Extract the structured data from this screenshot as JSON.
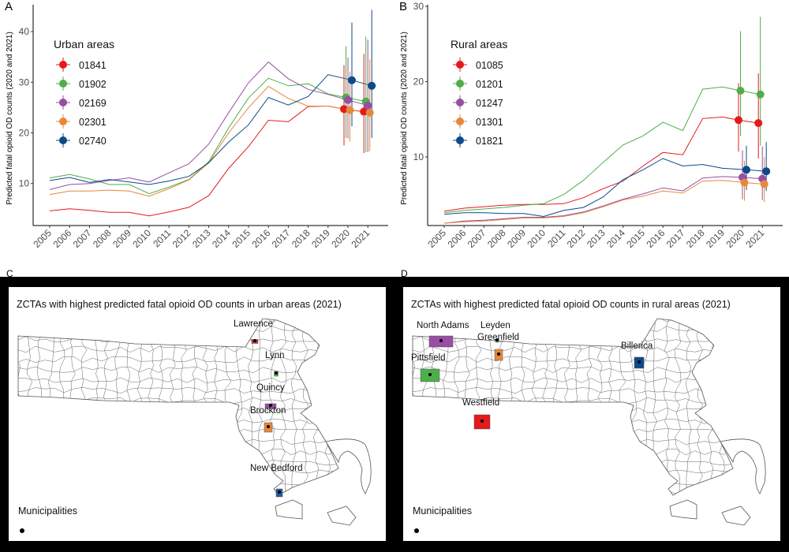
{
  "panels": {
    "A": "A",
    "B": "B",
    "C": "C",
    "D": "D"
  },
  "chart_data": [
    {
      "type": "line",
      "panel": "A",
      "title": "",
      "xlabel": "",
      "ylabel": "Predicted fatal opioid OD counts (2020 and 2021)",
      "ylim": [
        1.7,
        45
      ],
      "yticks": [
        10,
        20,
        30,
        40
      ],
      "x": [
        2005,
        2006,
        2007,
        2008,
        2009,
        2010,
        2011,
        2012,
        2013,
        2014,
        2015,
        2016,
        2017,
        2018,
        2019,
        2020,
        2021
      ],
      "legend_title": "Urban areas",
      "legend_position": "top-left",
      "grid": false,
      "series": [
        {
          "name": "01841",
          "color": "#e41a1c",
          "values": [
            4.6,
            5.0,
            4.7,
            4.3,
            4.3,
            3.6,
            4.4,
            5.3,
            7.6,
            13.0,
            17.3,
            22.5,
            22.2,
            25.2,
            25.3,
            24.7,
            24.2
          ],
          "ci": {
            "2020": [
              17.5,
              33.4
            ],
            "2021": [
              16.0,
              35.6
            ]
          }
        },
        {
          "name": "01902",
          "color": "#4daf4a",
          "values": [
            11.1,
            11.8,
            10.9,
            9.8,
            9.8,
            8.0,
            9.3,
            10.8,
            14.3,
            21.0,
            26.9,
            30.8,
            29.3,
            29.7,
            27.7,
            27.0,
            26.2
          ],
          "ci": {
            "2020": [
              19.0,
              37.1
            ],
            "2021": [
              16.2,
              39.0
            ]
          }
        },
        {
          "name": "02169",
          "color": "#984ea3",
          "values": [
            8.8,
            9.8,
            10.0,
            10.6,
            11.1,
            10.3,
            12.1,
            13.9,
            17.8,
            24.0,
            29.9,
            34.0,
            30.7,
            28.6,
            27.6,
            26.5,
            25.4
          ],
          "ci": {
            "2020": [
              18.9,
              34.9
            ],
            "2021": [
              16.2,
              38.4
            ]
          }
        },
        {
          "name": "02301",
          "color": "#e6883b",
          "values": [
            7.8,
            8.5,
            8.5,
            8.7,
            8.5,
            7.5,
            9.0,
            10.7,
            14.1,
            20.0,
            25.0,
            29.2,
            26.8,
            25.3,
            25.3,
            24.5,
            24.0
          ],
          "ci": {
            "2020": [
              18.3,
              32.1
            ],
            "2021": [
              16.4,
              34.5
            ]
          }
        },
        {
          "name": "02740",
          "color": "#0c4a8a",
          "values": [
            10.6,
            11.2,
            10.2,
            10.8,
            10.3,
            9.8,
            10.5,
            11.4,
            14.1,
            18.2,
            21.6,
            27.0,
            25.5,
            27.2,
            31.5,
            30.4,
            29.3
          ],
          "ci": {
            "2020": [
              21.3,
              41.8
            ],
            "2021": [
              19.0,
              44.3
            ]
          }
        }
      ]
    },
    {
      "type": "line",
      "panel": "B",
      "title": "",
      "xlabel": "",
      "ylabel": "Predicted fatal opioid OD counts (2020 and 2021)",
      "ylim": [
        0.9,
        30
      ],
      "yticks": [
        10,
        20,
        30
      ],
      "x": [
        2005,
        2006,
        2007,
        2008,
        2009,
        2010,
        2011,
        2012,
        2013,
        2014,
        2015,
        2016,
        2017,
        2018,
        2019,
        2020,
        2021
      ],
      "legend_title": "Rural areas",
      "legend_position": "top-left",
      "grid": false,
      "series": [
        {
          "name": "01085",
          "color": "#e41a1c",
          "values": [
            2.8,
            3.2,
            3.4,
            3.6,
            3.7,
            3.7,
            3.8,
            4.6,
            5.8,
            6.8,
            8.8,
            10.6,
            10.3,
            15.1,
            15.3,
            14.9,
            14.5
          ],
          "ci": {
            "2020": [
              10.7,
              19.8
            ],
            "2021": [
              9.8,
              21.1
            ]
          }
        },
        {
          "name": "01201",
          "color": "#4daf4a",
          "values": [
            2.6,
            2.9,
            3.1,
            3.3,
            3.6,
            3.8,
            5.0,
            6.9,
            9.3,
            11.6,
            12.8,
            14.6,
            13.5,
            19.0,
            19.3,
            18.8,
            18.3
          ],
          "ci": {
            "2020": [
              12.8,
              26.7
            ],
            "2021": [
              11.5,
              28.6
            ]
          }
        },
        {
          "name": "01247",
          "color": "#984ea3",
          "values": [
            1.2,
            1.5,
            1.6,
            1.8,
            2.0,
            2.0,
            2.2,
            2.7,
            3.5,
            4.4,
            5.1,
            5.9,
            5.5,
            7.2,
            7.4,
            7.3,
            7.1
          ],
          "ci": {
            "2020": [
              4.4,
              10.9
            ],
            "2021": [
              4.3,
              11.4
            ]
          }
        },
        {
          "name": "01301",
          "color": "#e6883b",
          "values": [
            1.2,
            1.4,
            1.5,
            1.7,
            1.9,
            1.9,
            2.1,
            2.6,
            3.4,
            4.3,
            4.8,
            5.5,
            5.2,
            6.8,
            6.9,
            6.6,
            6.4
          ],
          "ci": {
            "2020": [
              4.2,
              9.5
            ],
            "2021": [
              4.0,
              10.0
            ]
          }
        },
        {
          "name": "01821",
          "color": "#0c4a8a",
          "values": [
            2.4,
            2.6,
            2.6,
            2.5,
            2.5,
            2.1,
            2.9,
            3.3,
            4.7,
            7.0,
            8.3,
            9.8,
            8.8,
            9.0,
            8.5,
            8.3,
            8.1
          ],
          "ci": {
            "2020": [
              5.6,
              11.5
            ],
            "2021": [
              5.5,
              12.0
            ]
          }
        }
      ]
    }
  ],
  "maps": {
    "C": {
      "title": "ZCTAs with highest predicted fatal opioid OD counts in urban areas (2021)",
      "legend_label": "Municipalities",
      "places": [
        {
          "name": "Lawrence",
          "color": "#c0392b"
        },
        {
          "name": "Lynn",
          "color": "#4daf4a"
        },
        {
          "name": "Quincy",
          "color": "#984ea3"
        },
        {
          "name": "Brockton",
          "color": "#e6883b"
        },
        {
          "name": "New Bedford",
          "color": "#1f5f9f"
        }
      ]
    },
    "D": {
      "title": "ZCTAs with highest predicted fatal opioid OD counts in rural areas (2021)",
      "legend_label": "Municipalities",
      "places": [
        {
          "name": "North Adams",
          "color": "#984ea3"
        },
        {
          "name": "Leyden",
          "color": "#4daf4a"
        },
        {
          "name": "Greenfield",
          "color": "#e6883b"
        },
        {
          "name": "Pittsfield",
          "color": "#4daf4a"
        },
        {
          "name": "Westfield",
          "color": "#e41a1c"
        },
        {
          "name": "Billerica",
          "color": "#0c4a8a"
        }
      ]
    }
  }
}
